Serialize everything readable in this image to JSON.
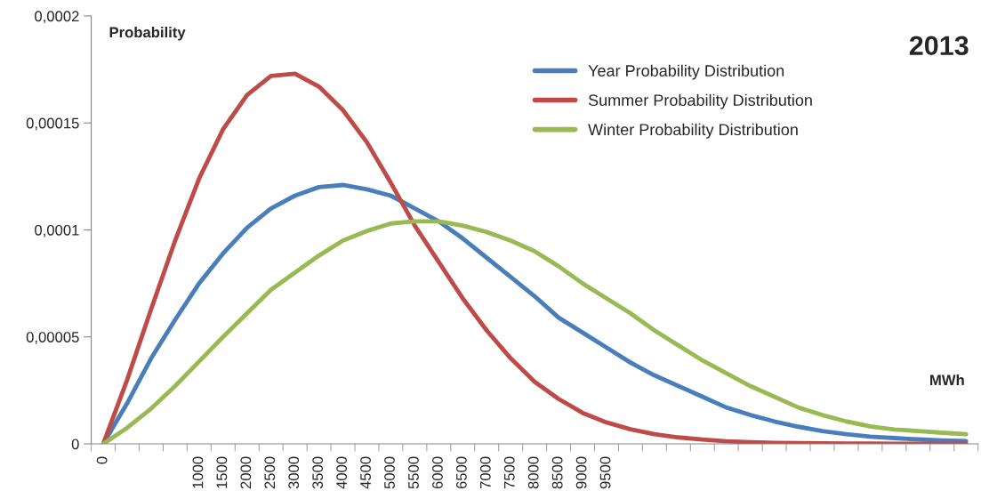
{
  "chart_data": {
    "type": "line",
    "title": "2013",
    "xlabel": "MWh",
    "ylabel": "Probability",
    "categories": [
      "0",
      null,
      null,
      null,
      "1000",
      "1500",
      "2000",
      "2500",
      "3000",
      "3500",
      "4000",
      "4500",
      "5000",
      "5500",
      "6000",
      "6500",
      "7000",
      "7500",
      "8000",
      "8500",
      "9000",
      "9500",
      null,
      null,
      null,
      null,
      null,
      null,
      null,
      null,
      null,
      null,
      null,
      null,
      null,
      null,
      null
    ],
    "series": [
      {
        "name": "Year Probability Distribution",
        "color": "#4a7ebb",
        "values": [
          0,
          1.9e-05,
          4e-05,
          5.8e-05,
          7.5e-05,
          8.9e-05,
          0.000101,
          0.00011,
          0.000116,
          0.00012,
          0.000121,
          0.000119,
          0.000116,
          0.00011,
          0.000104,
          9.6e-05,
          8.7e-05,
          7.8e-05,
          6.9e-05,
          5.9e-05,
          5.2e-05,
          4.5e-05,
          3.8e-05,
          3.2e-05,
          2.7e-05,
          2.2e-05,
          1.7e-05,
          1.35e-05,
          1.05e-05,
          8e-06,
          6e-06,
          4.5e-06,
          3.4e-06,
          2.7e-06,
          2.1e-06,
          1.6e-06,
          1.3e-06
        ]
      },
      {
        "name": "Summer Probability Distribution",
        "color": "#be4b48",
        "values": [
          0,
          3e-05,
          6.3e-05,
          9.5e-05,
          0.000124,
          0.000147,
          0.000163,
          0.000172,
          0.000173,
          0.000167,
          0.000156,
          0.000141,
          0.000122,
          0.000102,
          8.5e-05,
          6.8e-05,
          5.3e-05,
          4e-05,
          2.9e-05,
          2.1e-05,
          1.45e-05,
          1e-05,
          6.8e-06,
          4.5e-06,
          3e-06,
          2e-06,
          1.2e-06,
          8e-07,
          5e-07,
          3e-07,
          2e-07,
          1e-07,
          1e-07,
          0,
          0,
          0,
          0
        ]
      },
      {
        "name": "Winter Probability Distribution",
        "color": "#98b954",
        "values": [
          0,
          7.5e-06,
          1.65e-05,
          2.7e-05,
          3.85e-05,
          5e-05,
          6.1e-05,
          7.2e-05,
          8e-05,
          8.8e-05,
          9.5e-05,
          9.95e-05,
          0.000103,
          0.000104,
          0.000104,
          0.000102,
          9.9e-05,
          9.5e-05,
          9e-05,
          8.3e-05,
          7.5e-05,
          6.8e-05,
          6.1e-05,
          5.3e-05,
          4.6e-05,
          3.9e-05,
          3.3e-05,
          2.7e-05,
          2.2e-05,
          1.7e-05,
          1.35e-05,
          1.05e-05,
          8.2e-06,
          6.7e-06,
          6e-06,
          5.2e-06,
          4.5e-06
        ]
      }
    ],
    "ylim": [
      0,
      0.0002
    ],
    "yticks": [
      {
        "value": 0,
        "label": "0"
      },
      {
        "value": 5e-05,
        "label": "0,00005"
      },
      {
        "value": 0.0001,
        "label": "0,0001"
      },
      {
        "value": 0.00015,
        "label": "0,00015"
      },
      {
        "value": 0.0002,
        "label": "0,0002"
      }
    ],
    "legend": "top right",
    "grid": false
  }
}
